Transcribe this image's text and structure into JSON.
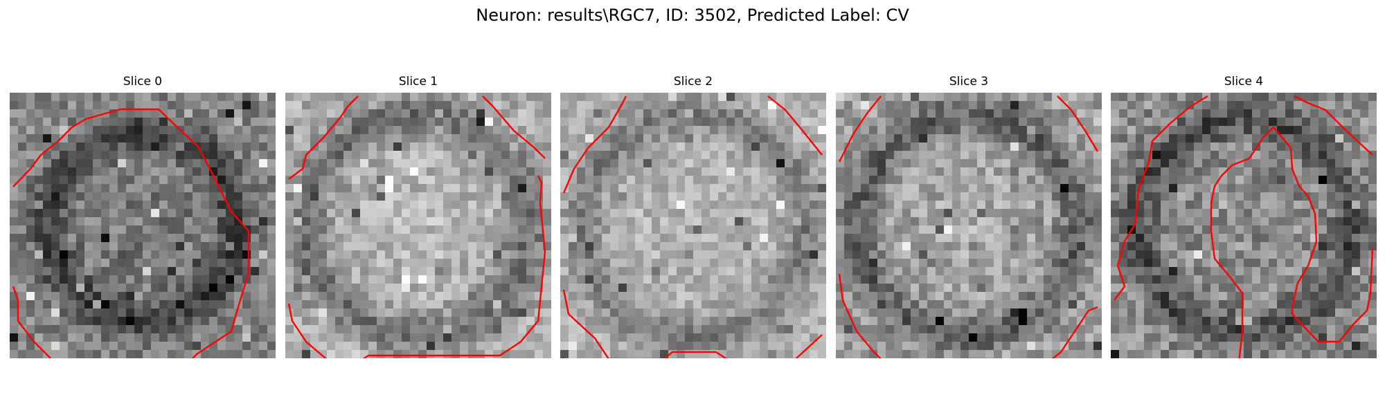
{
  "figure": {
    "title": "Neuron: results\\RGC7, ID: 3502, Predicted Label: CV"
  },
  "slices": [
    {
      "title": "Slice 0"
    },
    {
      "title": "Slice 1"
    },
    {
      "title": "Slice 2"
    },
    {
      "title": "Slice 3"
    },
    {
      "title": "Slice 4"
    }
  ],
  "colors": {
    "contour": "#ff0000",
    "colormap": "grayscale"
  }
}
